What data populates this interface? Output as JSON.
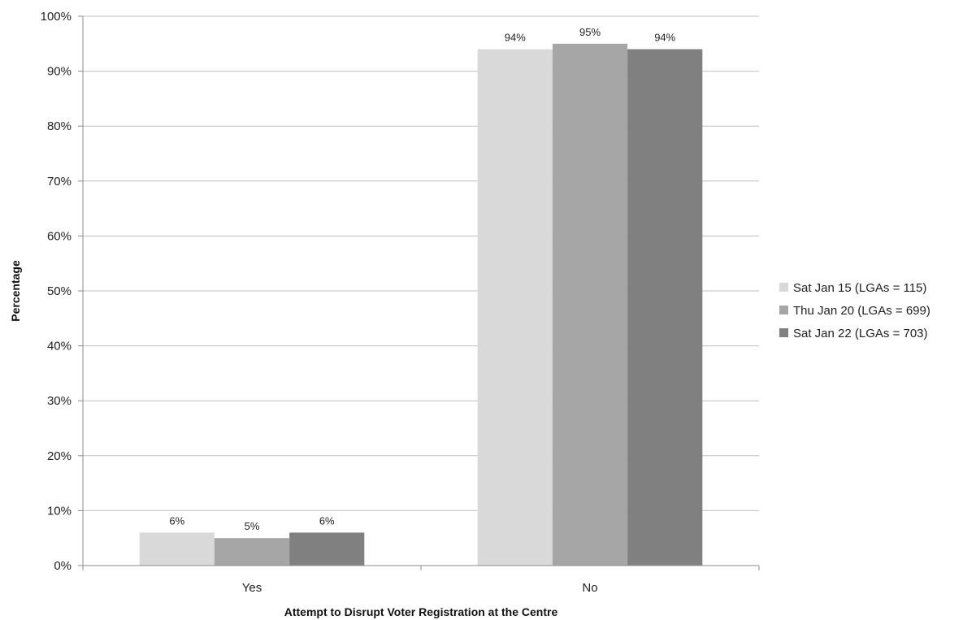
{
  "chart_data": {
    "type": "bar",
    "title": "",
    "xlabel": "Attempt to Disrupt Voter Registration at the Centre",
    "ylabel": "Percentage",
    "ylim": [
      0,
      100
    ],
    "yticks": [
      0,
      10,
      20,
      30,
      40,
      50,
      60,
      70,
      80,
      90,
      100
    ],
    "ytick_suffix": "%",
    "grid": true,
    "legend_position": "right",
    "categories": [
      "Yes",
      "No"
    ],
    "series": [
      {
        "name": "Sat Jan 15 (LGAs = 115)",
        "color": "#d9d9d9",
        "values": [
          6,
          94
        ],
        "labels": [
          "6%",
          "94%"
        ]
      },
      {
        "name": "Thu Jan 20 (LGAs = 699)",
        "color": "#a6a6a6",
        "values": [
          5,
          95
        ],
        "labels": [
          "5%",
          "95%"
        ]
      },
      {
        "name": "Sat Jan 22 (LGAs = 703)",
        "color": "#808080",
        "values": [
          6,
          94
        ],
        "labels": [
          "6%",
          "94%"
        ]
      }
    ]
  }
}
